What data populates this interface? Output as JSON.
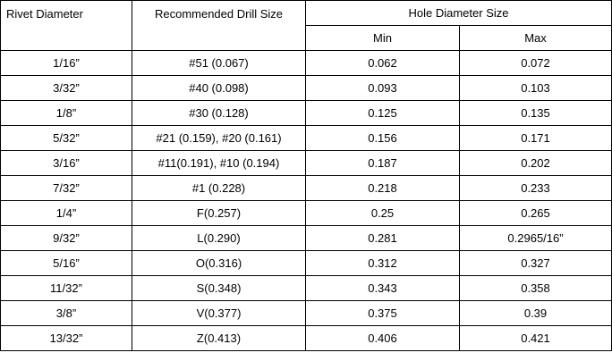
{
  "table": {
    "header": {
      "rivet": "Rivet Diameter",
      "drill": "Recommended Drill Size",
      "hole": "Hole Diameter Size",
      "min": "Min",
      "max": "Max"
    },
    "rows": [
      [
        "1/16”",
        "#51 (0.067)",
        "0.062",
        "0.072"
      ],
      [
        "3/32”",
        "#40 (0.098)",
        "0.093",
        "0.103"
      ],
      [
        "1/8”",
        "#30 (0.128)",
        "0.125",
        "0.135"
      ],
      [
        "5/32”",
        "#21 (0.159), #20 (0.161)",
        "0.156",
        "0.171"
      ],
      [
        "3/16”",
        "#11(0.191), #10 (0.194)",
        "0.187",
        "0.202"
      ],
      [
        "7/32”",
        "#1 (0.228)",
        "0.218",
        "0.233"
      ],
      [
        "1/4”",
        "F(0.257)",
        "0.25",
        "0.265"
      ],
      [
        "9/32”",
        "L(0.290)",
        "0.281",
        "0.2965/16”"
      ],
      [
        "5/16”",
        "O(0.316)",
        "0.312",
        "0.327"
      ],
      [
        "11/32”",
        "S(0.348)",
        "0.343",
        "0.358"
      ],
      [
        "3/8”",
        "V(0.377)",
        "0.375",
        "0.39"
      ],
      [
        "13/32”",
        "Z(0.413)",
        "0.406",
        "0.421"
      ]
    ]
  }
}
